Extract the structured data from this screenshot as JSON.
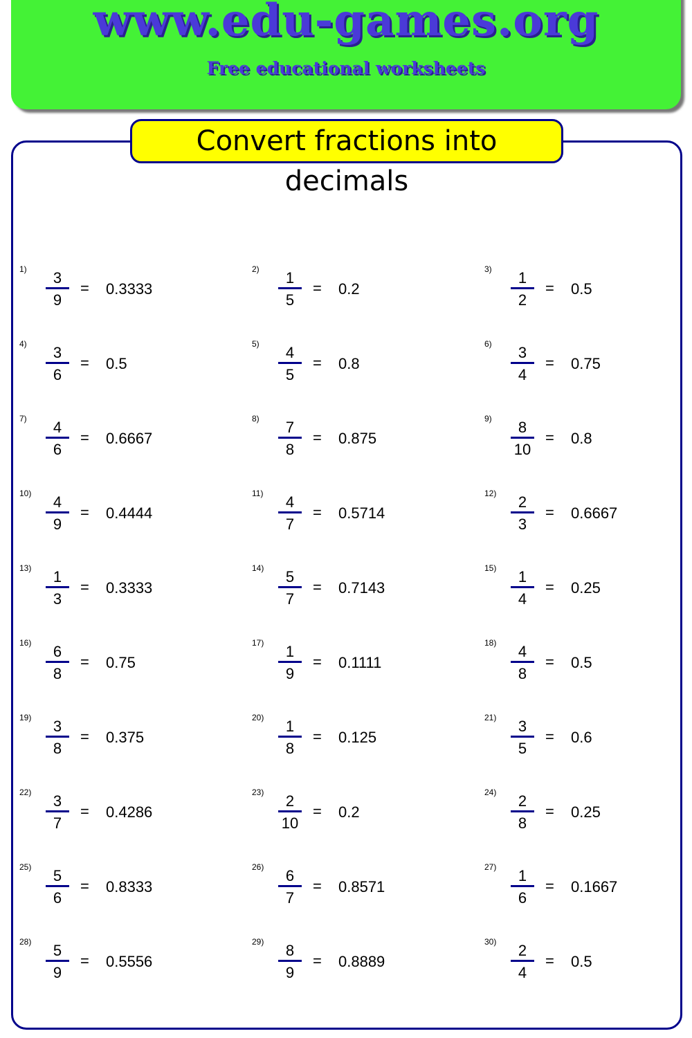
{
  "header": {
    "site": "www.edu-games.org",
    "tagline": "Free educational worksheets",
    "background_color": "#44f236",
    "text_color": "#4a3ad8"
  },
  "worksheet": {
    "title": "Convert fractions into decimals",
    "title_background": "#ffff00",
    "equals": "=",
    "problems": [
      {
        "label": "1)",
        "numerator": "3",
        "denominator": "9",
        "answer": "0.3333"
      },
      {
        "label": "2)",
        "numerator": "1",
        "denominator": "5",
        "answer": "0.2"
      },
      {
        "label": "3)",
        "numerator": "1",
        "denominator": "2",
        "answer": "0.5"
      },
      {
        "label": "4)",
        "numerator": "3",
        "denominator": "6",
        "answer": "0.5"
      },
      {
        "label": "5)",
        "numerator": "4",
        "denominator": "5",
        "answer": "0.8"
      },
      {
        "label": "6)",
        "numerator": "3",
        "denominator": "4",
        "answer": "0.75"
      },
      {
        "label": "7)",
        "numerator": "4",
        "denominator": "6",
        "answer": "0.6667"
      },
      {
        "label": "8)",
        "numerator": "7",
        "denominator": "8",
        "answer": "0.875"
      },
      {
        "label": "9)",
        "numerator": "8",
        "denominator": "10",
        "answer": "0.8"
      },
      {
        "label": "10)",
        "numerator": "4",
        "denominator": "9",
        "answer": "0.4444"
      },
      {
        "label": "11)",
        "numerator": "4",
        "denominator": "7",
        "answer": "0.5714"
      },
      {
        "label": "12)",
        "numerator": "2",
        "denominator": "3",
        "answer": "0.6667"
      },
      {
        "label": "13)",
        "numerator": "1",
        "denominator": "3",
        "answer": "0.3333"
      },
      {
        "label": "14)",
        "numerator": "5",
        "denominator": "7",
        "answer": "0.7143"
      },
      {
        "label": "15)",
        "numerator": "1",
        "denominator": "4",
        "answer": "0.25"
      },
      {
        "label": "16)",
        "numerator": "6",
        "denominator": "8",
        "answer": "0.75"
      },
      {
        "label": "17)",
        "numerator": "1",
        "denominator": "9",
        "answer": "0.1111"
      },
      {
        "label": "18)",
        "numerator": "4",
        "denominator": "8",
        "answer": "0.5"
      },
      {
        "label": "19)",
        "numerator": "3",
        "denominator": "8",
        "answer": "0.375"
      },
      {
        "label": "20)",
        "numerator": "1",
        "denominator": "8",
        "answer": "0.125"
      },
      {
        "label": "21)",
        "numerator": "3",
        "denominator": "5",
        "answer": "0.6"
      },
      {
        "label": "22)",
        "numerator": "3",
        "denominator": "7",
        "answer": "0.4286"
      },
      {
        "label": "23)",
        "numerator": "2",
        "denominator": "10",
        "answer": "0.2"
      },
      {
        "label": "24)",
        "numerator": "2",
        "denominator": "8",
        "answer": "0.25"
      },
      {
        "label": "25)",
        "numerator": "5",
        "denominator": "6",
        "answer": "0.8333"
      },
      {
        "label": "26)",
        "numerator": "6",
        "denominator": "7",
        "answer": "0.8571"
      },
      {
        "label": "27)",
        "numerator": "1",
        "denominator": "6",
        "answer": "0.1667"
      },
      {
        "label": "28)",
        "numerator": "5",
        "denominator": "9",
        "answer": "0.5556"
      },
      {
        "label": "29)",
        "numerator": "8",
        "denominator": "9",
        "answer": "0.8889"
      },
      {
        "label": "30)",
        "numerator": "2",
        "denominator": "4",
        "answer": "0.5"
      }
    ]
  }
}
